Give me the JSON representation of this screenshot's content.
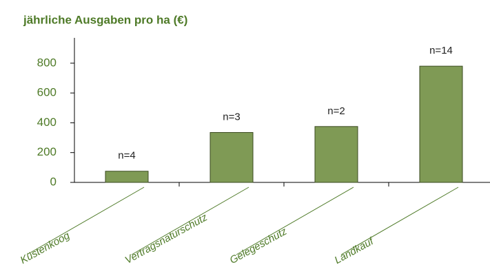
{
  "chart_data": {
    "type": "bar",
    "title": "jährliche Ausgaben pro ha (€)",
    "categories": [
      "Küstenkoog",
      "Vertragsnaturschutz",
      "Gelegeschutz",
      "Landkauf"
    ],
    "values": [
      75,
      335,
      375,
      780
    ],
    "annotations": [
      "n=4",
      "n=3",
      "n=2",
      "n=14"
    ],
    "color": "#7f9a55",
    "ylim": [
      0,
      970
    ],
    "yticks": [
      0,
      200,
      400,
      600,
      800
    ],
    "grid": false
  }
}
